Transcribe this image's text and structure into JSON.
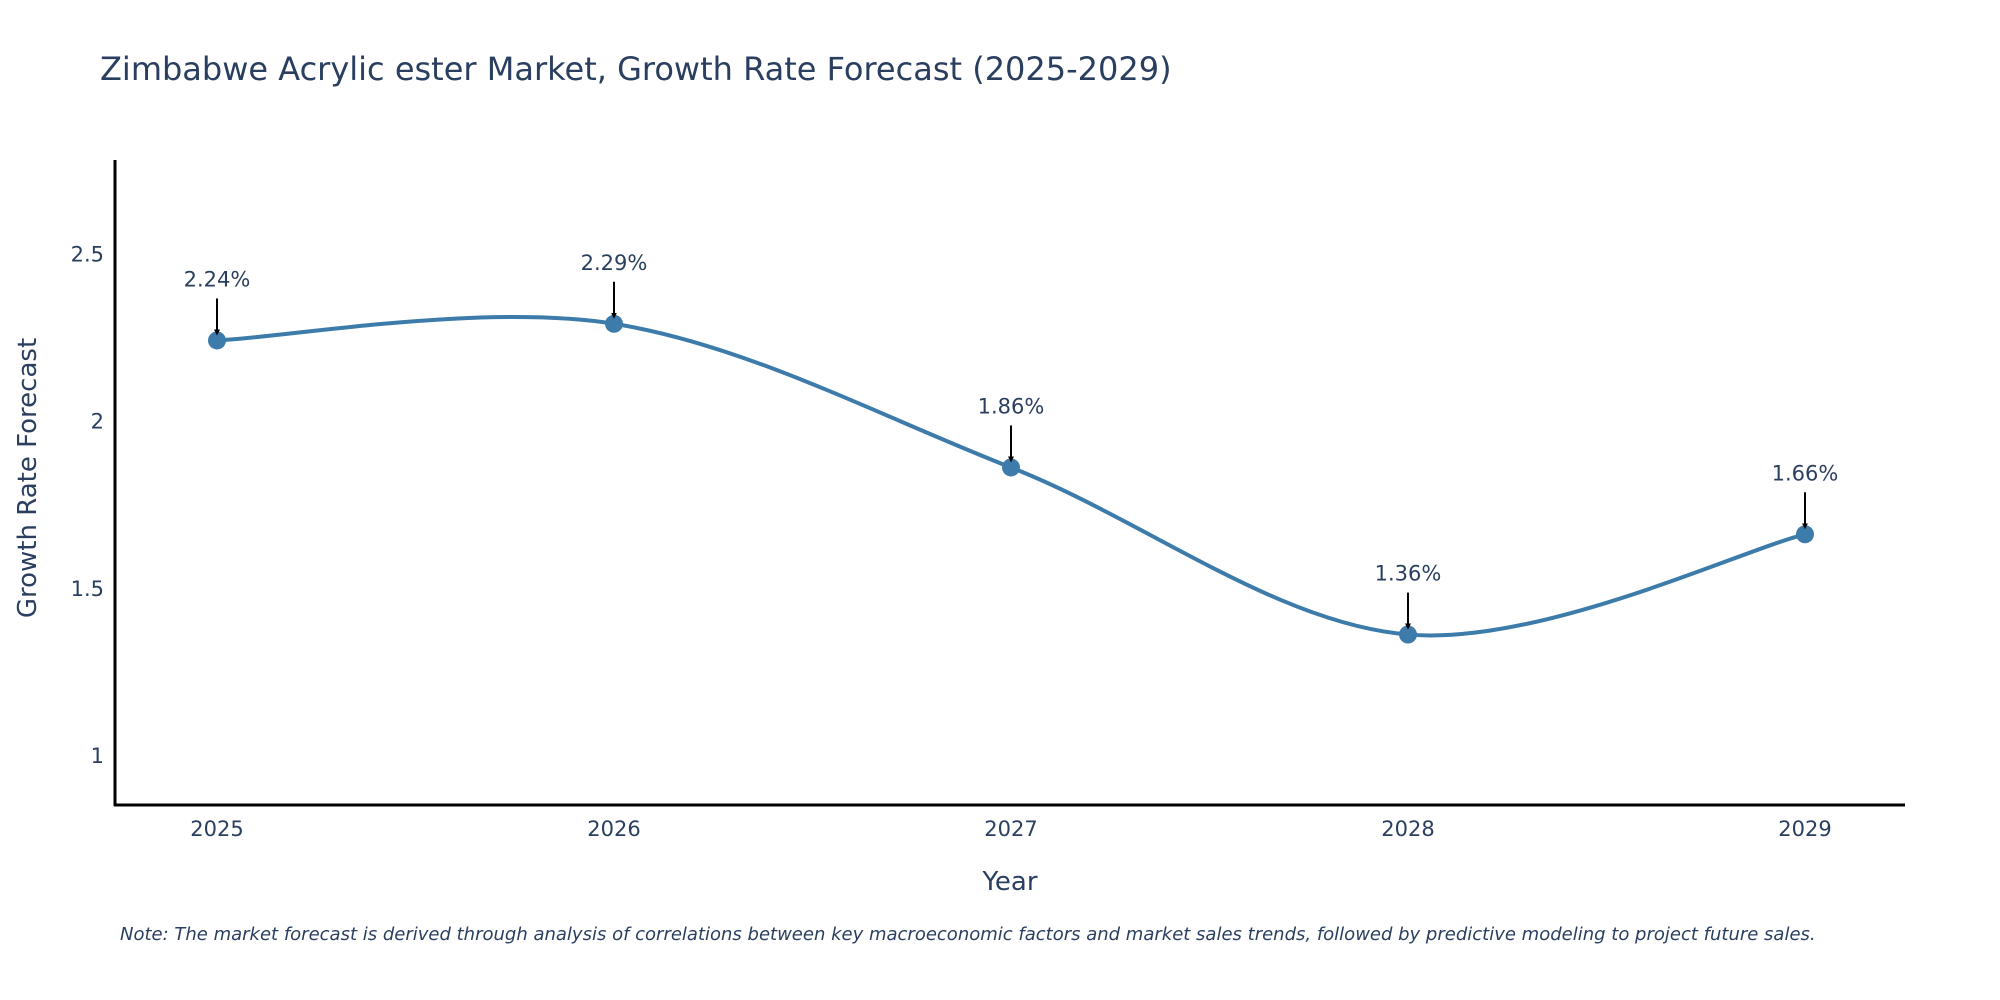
{
  "chart_data": {
    "type": "line",
    "title": "Zimbabwe Acrylic ester Market, Growth Rate Forecast (2025-2029)",
    "xlabel": "Year",
    "ylabel": "Growth Rate Forecast",
    "categories": [
      "2025",
      "2026",
      "2027",
      "2028",
      "2029"
    ],
    "series": [
      {
        "name": "Growth Rate Forecast",
        "values": [
          2.24,
          2.29,
          1.86,
          1.36,
          1.66
        ],
        "labels": [
          "2.24%",
          "2.29%",
          "1.86%",
          "1.36%",
          "1.66%"
        ],
        "color": "#3d7bab",
        "line_shape": "spline"
      }
    ],
    "yticks": [
      1,
      1.5,
      2,
      2.5
    ],
    "ytick_labels": [
      "1",
      "1.5",
      "2",
      "2.5"
    ],
    "ylim": [
      0.85,
      2.78
    ],
    "grid": false,
    "note": "Note: The market forecast is derived through analysis of correlations between key macroeconomic factors and market sales trends, followed by predictive modeling to project future sales."
  }
}
